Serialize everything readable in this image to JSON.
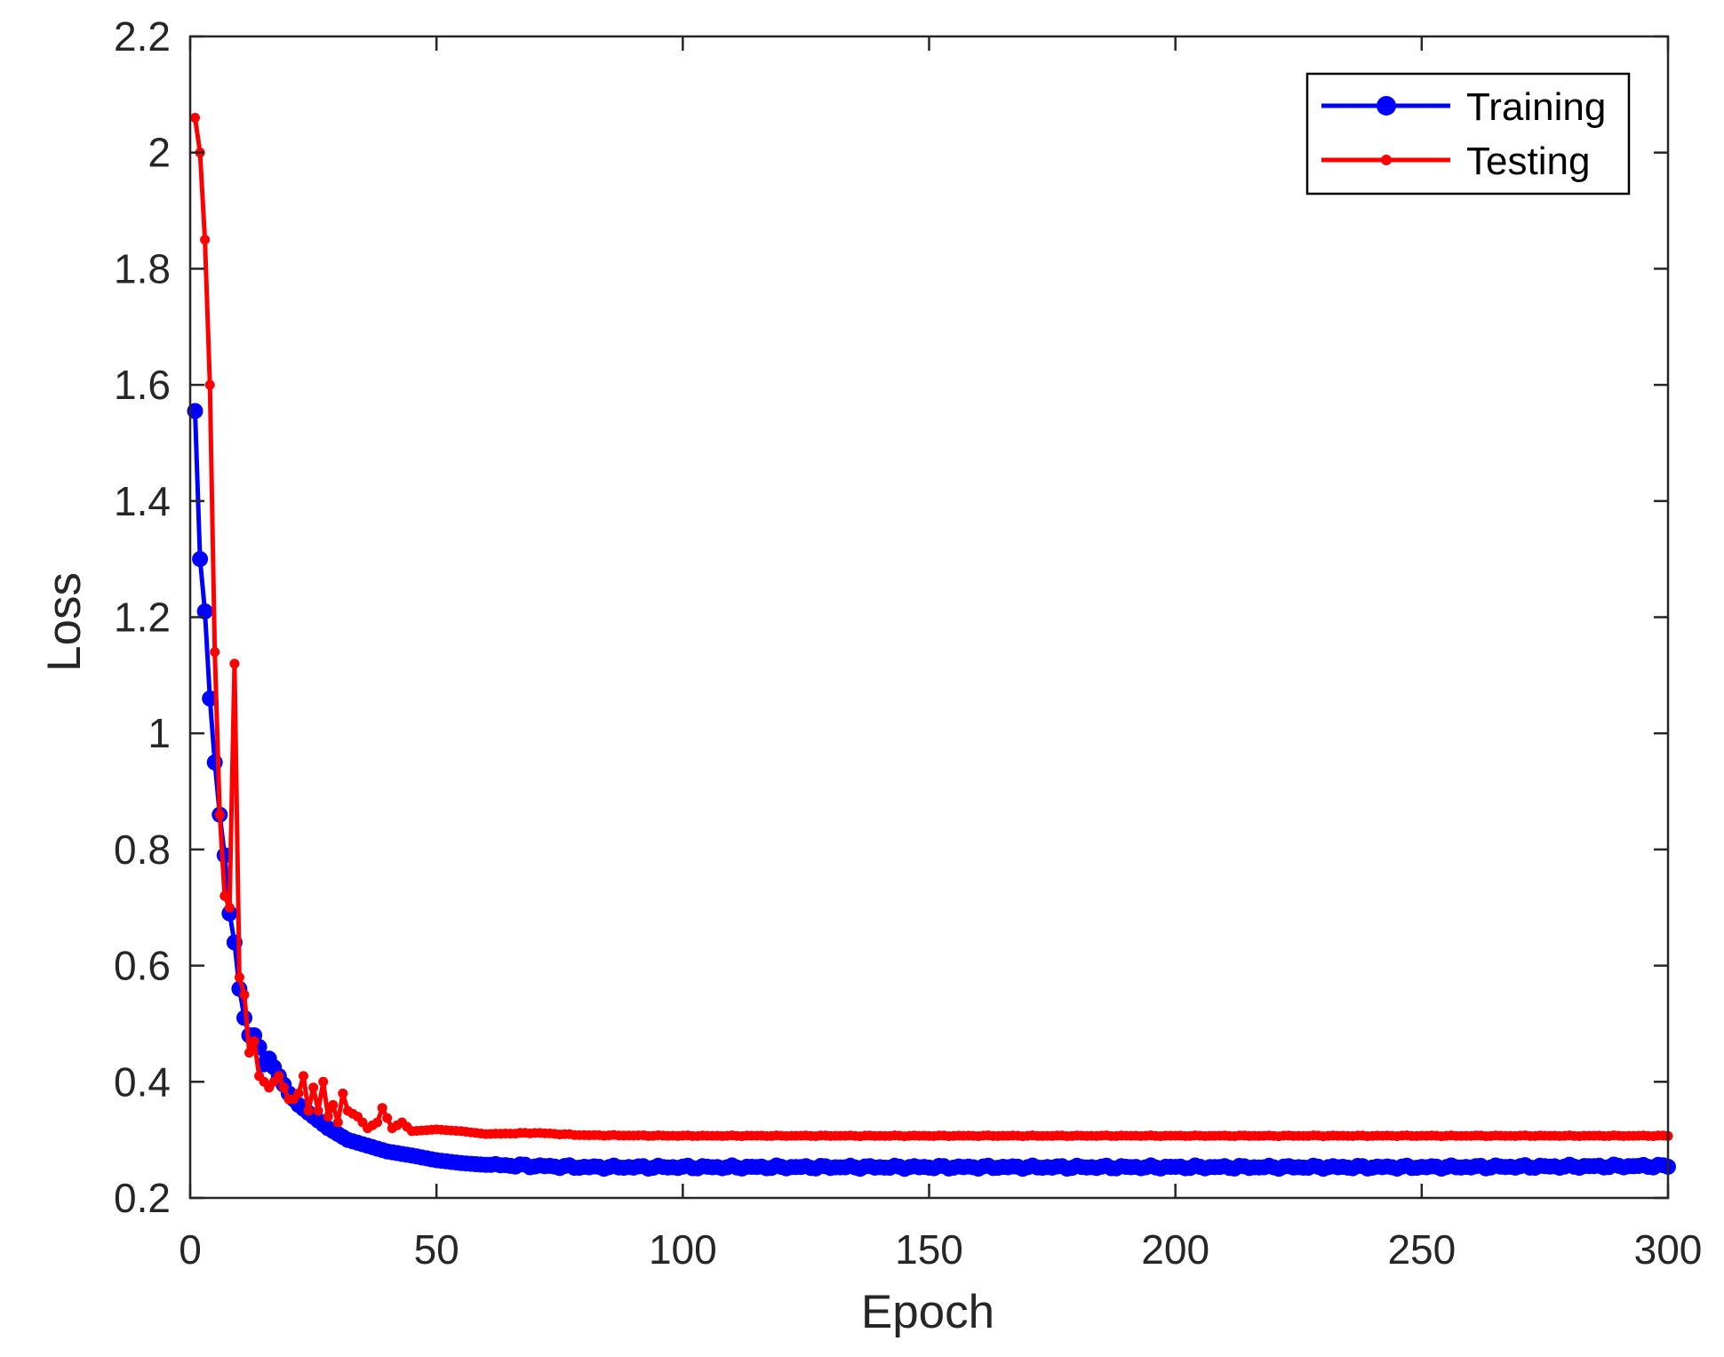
{
  "chart_data": {
    "type": "line",
    "title": "",
    "xlabel": "Epoch",
    "ylabel": "Loss",
    "xlim": [
      0,
      300
    ],
    "ylim": [
      0.2,
      2.2
    ],
    "xticks": [
      "0",
      "50",
      "100",
      "150",
      "200",
      "250",
      "300"
    ],
    "yticks": [
      "0.2",
      "0.4",
      "0.6",
      "0.8",
      "1",
      "1.2",
      "1.4",
      "1.6",
      "1.8",
      "2",
      "2.2"
    ],
    "grid": false,
    "legend_position": "top-right",
    "series": [
      {
        "name": "Training",
        "color": "#0000ff",
        "marker": "circle",
        "key_points": [
          [
            1,
            1.555
          ],
          [
            2,
            1.3
          ],
          [
            3,
            1.21
          ],
          [
            4,
            1.06
          ],
          [
            5,
            0.95
          ],
          [
            6,
            0.86
          ],
          [
            7,
            0.79
          ],
          [
            8,
            0.69
          ],
          [
            9,
            0.64
          ],
          [
            10,
            0.56
          ],
          [
            11,
            0.51
          ],
          [
            12,
            0.48
          ],
          [
            13,
            0.48
          ],
          [
            14,
            0.46
          ],
          [
            15,
            0.43
          ],
          [
            16,
            0.44
          ],
          [
            18,
            0.41
          ],
          [
            20,
            0.38
          ],
          [
            22,
            0.36
          ],
          [
            25,
            0.34
          ],
          [
            28,
            0.32
          ],
          [
            32,
            0.3
          ],
          [
            36,
            0.29
          ],
          [
            40,
            0.28
          ],
          [
            45,
            0.273
          ],
          [
            50,
            0.265
          ],
          [
            55,
            0.26
          ],
          [
            60,
            0.257
          ],
          [
            70,
            0.255
          ],
          [
            80,
            0.253
          ],
          [
            100,
            0.253
          ],
          [
            150,
            0.253
          ],
          [
            200,
            0.253
          ],
          [
            250,
            0.253
          ],
          [
            300,
            0.255
          ]
        ]
      },
      {
        "name": "Testing",
        "color": "#ff0000",
        "marker": "asterisk",
        "key_points": [
          [
            1,
            2.06
          ],
          [
            2,
            2.0
          ],
          [
            3,
            1.85
          ],
          [
            4,
            1.6
          ],
          [
            5,
            1.14
          ],
          [
            6,
            0.86
          ],
          [
            7,
            0.72
          ],
          [
            8,
            0.7
          ],
          [
            9,
            1.12
          ],
          [
            10,
            0.58
          ],
          [
            11,
            0.55
          ],
          [
            12,
            0.45
          ],
          [
            13,
            0.47
          ],
          [
            14,
            0.41
          ],
          [
            15,
            0.4
          ],
          [
            16,
            0.39
          ],
          [
            17,
            0.4
          ],
          [
            18,
            0.41
          ],
          [
            19,
            0.39
          ],
          [
            20,
            0.37
          ],
          [
            21,
            0.37
          ],
          [
            22,
            0.38
          ],
          [
            23,
            0.41
          ],
          [
            24,
            0.35
          ],
          [
            25,
            0.39
          ],
          [
            26,
            0.35
          ],
          [
            27,
            0.4
          ],
          [
            28,
            0.34
          ],
          [
            29,
            0.36
          ],
          [
            30,
            0.33
          ],
          [
            31,
            0.38
          ],
          [
            32,
            0.35
          ],
          [
            34,
            0.34
          ],
          [
            36,
            0.32
          ],
          [
            38,
            0.33
          ],
          [
            39,
            0.355
          ],
          [
            41,
            0.32
          ],
          [
            43,
            0.33
          ],
          [
            45,
            0.315
          ],
          [
            50,
            0.318
          ],
          [
            55,
            0.315
          ],
          [
            60,
            0.31
          ],
          [
            70,
            0.312
          ],
          [
            80,
            0.308
          ],
          [
            100,
            0.307
          ],
          [
            150,
            0.307
          ],
          [
            200,
            0.307
          ],
          [
            250,
            0.307
          ],
          [
            300,
            0.307
          ]
        ]
      }
    ]
  }
}
